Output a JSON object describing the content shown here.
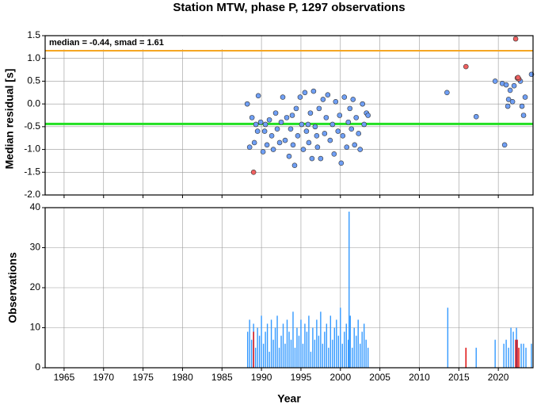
{
  "chart_data": [
    {
      "type": "scatter",
      "title": "Station MTW, phase P, 1297 observations",
      "ylabel": "Median residual [s]",
      "annotation": "median = -0.44, smad = 1.61",
      "xlim": [
        1962.6,
        2024.4
      ],
      "ylim": [
        -2.0,
        1.5
      ],
      "yticks": [
        {
          "value": -2.0,
          "label": "-2.0"
        },
        -1.5,
        {
          "value": -1.0,
          "label": "-1.0"
        },
        -0.5,
        {
          "value": 0,
          "label": "0.0"
        },
        0.5,
        {
          "value": 1.0,
          "label": "1.0"
        },
        1.5
      ],
      "grid": true,
      "hlines": [
        {
          "value": 1.17,
          "color": "#f5a623"
        },
        {
          "value": -0.44,
          "color": "#22e022"
        }
      ],
      "series": [
        {
          "color": "#6f9ff5",
          "x": [
            1988.2,
            1988.5,
            1988.8,
            1989.1,
            1989.3,
            1989.6,
            1989.9,
            1990.2,
            1990.4,
            1990.7,
            1991,
            1991.3,
            1991.5,
            1991.8,
            1992,
            1992.3,
            1992.5,
            1992.7,
            1993,
            1993.2,
            1993.5,
            1993.7,
            1994,
            1994.2,
            1994.4,
            1994.6,
            1994.9,
            1995.1,
            1995.3,
            1995.5,
            1995.7,
            1996,
            1996.2,
            1996.4,
            1996.6,
            1996.8,
            1997.1,
            1997.3,
            1997.5,
            1997.8,
            1998,
            1998.2,
            1998.4,
            1998.7,
            1999,
            1999.2,
            1999.4,
            1999.7,
            1999.9,
            2000.1,
            2000.3,
            2000.5,
            2000.8,
            2001,
            2001.2,
            2001.4,
            2001.6,
            2001.8,
            2002,
            2002.3,
            2002.5,
            2002.8,
            2003,
            2003.3,
            2003.5,
            1990.5,
            1995.9,
            1997,
            1993.9,
            1989.5,
            2013.5,
            2017.2,
            2019.6,
            2020.8,
            2020.5,
            2021,
            2021.3,
            2021.5,
            2021.8,
            2022,
            2022.8,
            2023.2,
            2023.4,
            2024.2,
            2021.2,
            2023
          ],
          "values": [
            0.0,
            -0.95,
            -0.3,
            -0.85,
            -0.45,
            0.18,
            -0.4,
            -1.05,
            -0.6,
            -0.9,
            -0.35,
            -0.7,
            -1.0,
            -0.2,
            -0.55,
            -0.85,
            -0.4,
            0.15,
            -0.8,
            -0.3,
            -1.15,
            -0.55,
            -0.9,
            -1.35,
            -0.1,
            -0.7,
            0.15,
            -0.45,
            -1.0,
            0.25,
            -0.6,
            -0.85,
            -0.2,
            -1.2,
            0.28,
            -0.5,
            -0.95,
            -0.1,
            -1.2,
            0.1,
            -0.65,
            -0.3,
            0.2,
            -0.8,
            -0.45,
            -1.1,
            0.05,
            -0.6,
            -0.25,
            -1.3,
            -0.7,
            0.15,
            -0.95,
            -0.4,
            -0.1,
            -0.55,
            0.1,
            -0.9,
            -0.3,
            -0.65,
            -1.0,
            0.0,
            -0.45,
            -0.2,
            -0.25,
            -0.45,
            -0.45,
            -0.7,
            -0.25,
            -0.6,
            0.25,
            -0.28,
            0.5,
            -0.9,
            0.45,
            0.42,
            0.1,
            0.3,
            0.05,
            0.4,
            0.5,
            -0.25,
            0.15,
            0.65,
            -0.05,
            -0.05
          ]
        },
        {
          "color": "#f06060",
          "x": [
            1989.0,
            2015.9,
            2022.2,
            2022.4,
            2022.6,
            2022.5
          ],
          "values": [
            -1.5,
            0.82,
            1.43,
            0.57,
            0.55,
            0.58
          ]
        }
      ]
    },
    {
      "type": "bar",
      "ylabel": "Observations",
      "xlabel": "Year",
      "xlim": [
        1962.6,
        2024.4
      ],
      "ylim": [
        0,
        40
      ],
      "xticks": [
        1965,
        1970,
        1975,
        1980,
        1985,
        1990,
        1995,
        2000,
        2005,
        2010,
        2015,
        2020
      ],
      "yticks": [
        0,
        10,
        20,
        30,
        40
      ],
      "grid": true,
      "series": [
        {
          "color": "#3399ff",
          "x": [
            1988.25,
            1988.5,
            1988.75,
            1989,
            1989.25,
            1989.5,
            1989.75,
            1990,
            1990.25,
            1990.5,
            1990.75,
            1991,
            1991.25,
            1991.5,
            1991.75,
            1992,
            1992.25,
            1992.5,
            1992.75,
            1993,
            1993.25,
            1993.5,
            1993.75,
            1994,
            1994.25,
            1994.5,
            1994.75,
            1995,
            1995.25,
            1995.5,
            1995.75,
            1996,
            1996.25,
            1996.5,
            1996.75,
            1997,
            1997.25,
            1997.5,
            1997.75,
            1998,
            1998.25,
            1998.5,
            1998.75,
            1999,
            1999.25,
            1999.5,
            1999.75,
            2000,
            2000.25,
            2000.5,
            2000.75,
            2001,
            2001.25,
            2001.5,
            2001.75,
            2002,
            2002.25,
            2002.5,
            2002.75,
            2003,
            2003.25,
            2003.5,
            2001.1,
            2013.6,
            2017.2,
            2019.6,
            2020.7,
            2021.0,
            2021.3,
            2021.6,
            2021.9,
            2022.3,
            2022.9,
            2023.2,
            2023.5,
            2024.2
          ],
          "values": [
            9,
            12,
            7,
            11,
            5,
            10,
            8,
            13,
            6,
            9,
            11,
            4,
            12,
            7,
            10,
            13,
            5,
            8,
            11,
            6,
            12,
            9,
            7,
            14,
            5,
            10,
            8,
            12,
            6,
            11,
            9,
            13,
            4,
            10,
            7,
            12,
            8,
            14,
            6,
            9,
            11,
            5,
            13,
            7,
            10,
            12,
            8,
            15,
            6,
            9,
            11,
            7,
            13,
            5,
            10,
            8,
            12,
            6,
            9,
            11,
            7,
            5,
            39,
            15,
            5,
            7,
            6,
            7,
            5,
            10,
            9,
            10,
            6,
            6,
            5,
            6
          ]
        },
        {
          "color": "#dd0000",
          "x": [
            1989.0,
            2015.9,
            2022.2,
            2022.4,
            2022.6
          ],
          "values": [
            9,
            5,
            7,
            7,
            5
          ]
        }
      ]
    }
  ]
}
